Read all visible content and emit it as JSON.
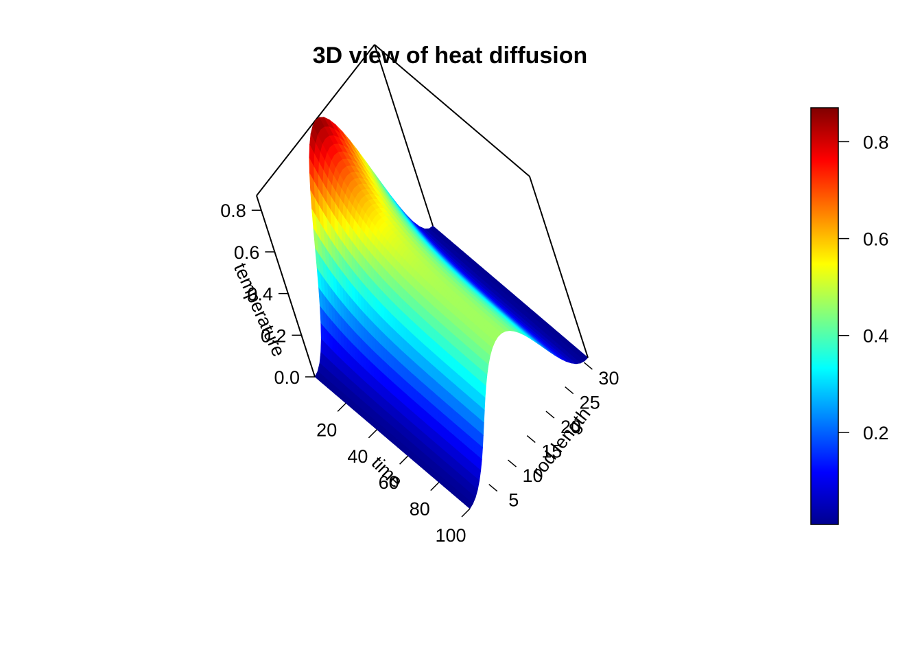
{
  "chart_data": {
    "type": "surface3d",
    "title": "3D view of heat diffusion",
    "axes": {
      "x": {
        "label": "time",
        "ticks": [
          "20",
          "40",
          "60",
          "80",
          "100"
        ],
        "range": [
          0,
          100
        ]
      },
      "y": {
        "label": "rod length",
        "ticks": [
          "5",
          "10",
          "15",
          "20",
          "25",
          "30"
        ],
        "range": [
          0,
          31
        ]
      },
      "z": {
        "label": "temperature",
        "ticks": [
          "0.0",
          "0.2",
          "0.4",
          "0.6",
          "0.8"
        ],
        "range": [
          0,
          0.87
        ]
      }
    },
    "colorbar": {
      "ticks": [
        "0.2",
        "0.4",
        "0.6",
        "0.8"
      ],
      "range": [
        0.01,
        0.87
      ],
      "palette": "jet"
    },
    "surface": {
      "description_model": "temperature(t, x) = 0.87 * (0.5 + 0.5*exp(-t/25)) * sin(pi*x/31)-like profile",
      "peak_value": 0.87,
      "peak_at": {
        "time": 0,
        "rod_length": 15
      },
      "edge_value": 0.0
    }
  }
}
